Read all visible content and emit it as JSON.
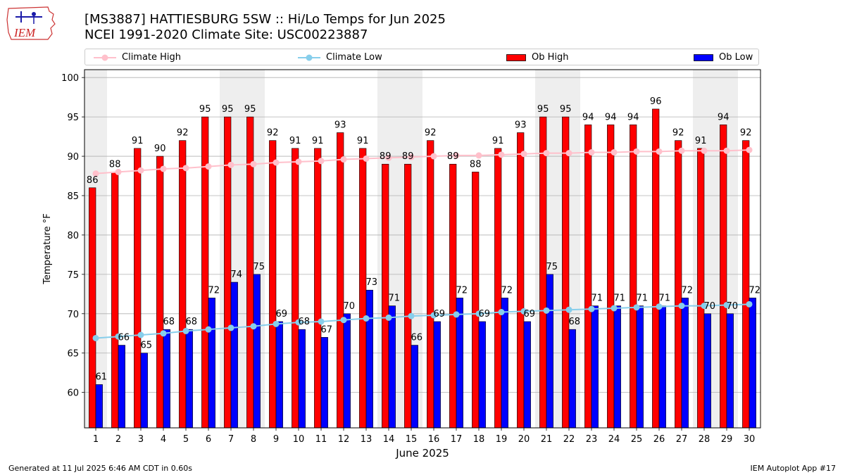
{
  "header": {
    "title_line1": "[MS3887] HATTIESBURG 5SW :: Hi/Lo Temps for Jun 2025",
    "title_line2": "NCEI 1991-2020 Climate Site: USC00223887"
  },
  "logo": {
    "text": "IEM",
    "icon": "iowa-state-logo-icon"
  },
  "legend": {
    "climate_high": "Climate High",
    "climate_low": "Climate Low",
    "ob_high": "Ob High",
    "ob_low": "Ob Low",
    "placement": "top"
  },
  "footer": {
    "generated": "Generated at 11 Jul 2025 6:46 AM CDT in 0.60s",
    "app": "IEM Autoplot App #17"
  },
  "colors": {
    "ob_high": "#ff0000",
    "ob_low": "#0000ff",
    "climate_high": "#ffc0cb",
    "climate_low": "#87ceeb",
    "weekend_shade": "#eeeeee",
    "grid": "#b0b0b0"
  },
  "chart_data": {
    "type": "bar",
    "title": "[MS3887] HATTIESBURG 5SW :: Hi/Lo Temps for Jun 2025",
    "xlabel": "June 2025",
    "ylabel": "Temperature °F",
    "ylim": [
      55.5,
      101
    ],
    "yticks": [
      60,
      65,
      70,
      75,
      80,
      85,
      90,
      95,
      100
    ],
    "grid": true,
    "legend_placement": "top",
    "categories": [
      "1",
      "2",
      "3",
      "4",
      "5",
      "6",
      "7",
      "8",
      "9",
      "10",
      "11",
      "12",
      "13",
      "14",
      "15",
      "16",
      "17",
      "18",
      "19",
      "20",
      "21",
      "22",
      "23",
      "24",
      "25",
      "26",
      "27",
      "28",
      "29",
      "30"
    ],
    "shaded_days": [
      1,
      7,
      8,
      14,
      15,
      21,
      22,
      28,
      29
    ],
    "series": [
      {
        "name": "Ob High",
        "kind": "bar",
        "values": [
          86,
          88,
          91,
          90,
          92,
          95,
          95,
          95,
          92,
          91,
          91,
          93,
          91,
          89,
          89,
          92,
          89,
          88,
          91,
          93,
          95,
          95,
          94,
          94,
          94,
          96,
          92,
          91,
          94,
          92
        ]
      },
      {
        "name": "Ob Low",
        "kind": "bar",
        "values": [
          61,
          66,
          65,
          68,
          68,
          72,
          74,
          75,
          69,
          68,
          67,
          70,
          73,
          71,
          66,
          69,
          72,
          69,
          72,
          69,
          75,
          68,
          71,
          71,
          71,
          71,
          72,
          70,
          70,
          72
        ]
      },
      {
        "name": "Climate High",
        "kind": "line",
        "values": [
          87.8,
          88.0,
          88.2,
          88.4,
          88.5,
          88.7,
          88.9,
          89.0,
          89.2,
          89.3,
          89.4,
          89.6,
          89.7,
          89.8,
          89.9,
          90.0,
          90.1,
          90.1,
          90.2,
          90.3,
          90.4,
          90.4,
          90.5,
          90.5,
          90.6,
          90.6,
          90.7,
          90.7,
          90.7,
          90.8
        ]
      },
      {
        "name": "Climate Low",
        "kind": "line",
        "values": [
          66.9,
          67.1,
          67.3,
          67.5,
          67.8,
          68.0,
          68.2,
          68.4,
          68.7,
          68.9,
          69.0,
          69.2,
          69.4,
          69.5,
          69.7,
          69.8,
          69.9,
          70.0,
          70.2,
          70.3,
          70.4,
          70.5,
          70.6,
          70.7,
          70.8,
          70.9,
          71.0,
          71.0,
          71.1,
          71.2
        ]
      }
    ]
  }
}
